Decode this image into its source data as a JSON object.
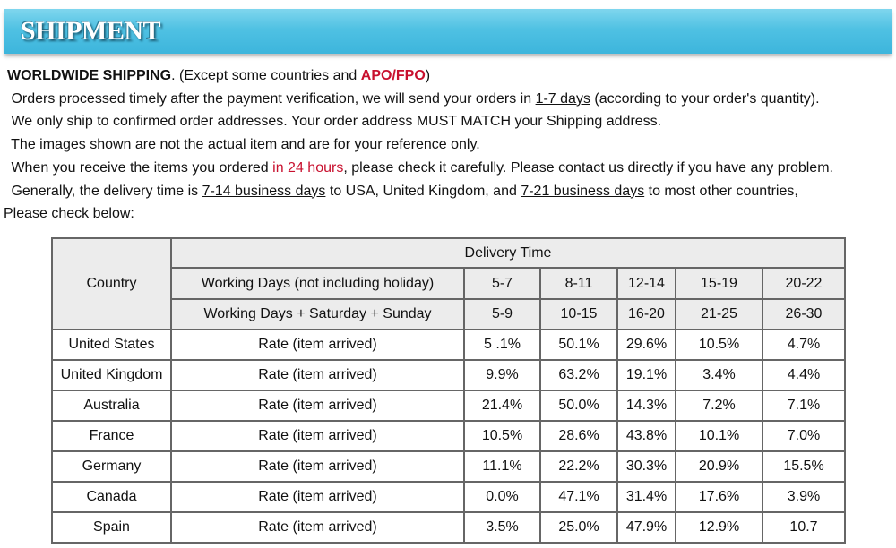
{
  "header": {
    "title": "SHIPMENT"
  },
  "paragraphs": [
    [
      "WORLDWIDE SHIPPING",
      ". (Except some countries and ",
      "APO/FPO",
      ")"
    ],
    [
      " Orders processed timely after the payment verification, we will send your orders in ",
      "1-7 days",
      " (according to your order's quantity)."
    ],
    [
      " We only ship to confirmed order addresses. Your order address MUST MATCH your Shipping address."
    ],
    [
      " The images shown are not the actual item and are for your reference only."
    ],
    [
      " When you receive the items you ordered ",
      "in 24 hours",
      ", please check it carefully. Please contact us directly if you have any problem."
    ],
    [
      " Generally, the delivery time is ",
      "7-14 business days",
      " to USA, United Kingdom, and ",
      "7-21 business days",
      " to most other countries,"
    ],
    [
      "Please check below:"
    ]
  ],
  "table": {
    "country_header": "Country",
    "delivery_header": "Delivery Time",
    "working_days": {
      "label": "Working Days (not including holiday)",
      "ranges": [
        "5-7",
        "8-11",
        "12-14",
        "15-19",
        "20-22"
      ]
    },
    "all_days": {
      "label": "Working Days + Saturday + Sunday",
      "ranges": [
        "5-9",
        "10-15",
        "16-20",
        "21-25",
        "26-30"
      ]
    },
    "rows": [
      {
        "country": "United States",
        "label": "Rate (item arrived)",
        "rates": [
          "5 .1%",
          "50.1%",
          "29.6%",
          "10.5%",
          "4.7%"
        ]
      },
      {
        "country": "United Kingdom",
        "label": "Rate (item arrived)",
        "rates": [
          "9.9%",
          "63.2%",
          "19.1%",
          "3.4%",
          "4.4%"
        ]
      },
      {
        "country": "Australia",
        "label": "Rate (item arrived)",
        "rates": [
          "21.4%",
          "50.0%",
          "14.3%",
          "7.2%",
          "7.1%"
        ]
      },
      {
        "country": "France",
        "label": "Rate (item arrived)",
        "rates": [
          "10.5%",
          "28.6%",
          "43.8%",
          "10.1%",
          "7.0%"
        ]
      },
      {
        "country": "Germany",
        "label": "Rate (item arrived)",
        "rates": [
          "11.1%",
          "22.2%",
          "30.3%",
          "20.9%",
          "15.5%"
        ]
      },
      {
        "country": "Canada",
        "label": "Rate (item arrived)",
        "rates": [
          "0.0%",
          "47.1%",
          "31.4%",
          "17.6%",
          "3.9%"
        ]
      },
      {
        "country": "Spain",
        "label": "Rate (item arrived)",
        "rates": [
          "3.5%",
          "25.0%",
          "47.9%",
          "12.9%",
          "10.7"
        ]
      }
    ]
  }
}
